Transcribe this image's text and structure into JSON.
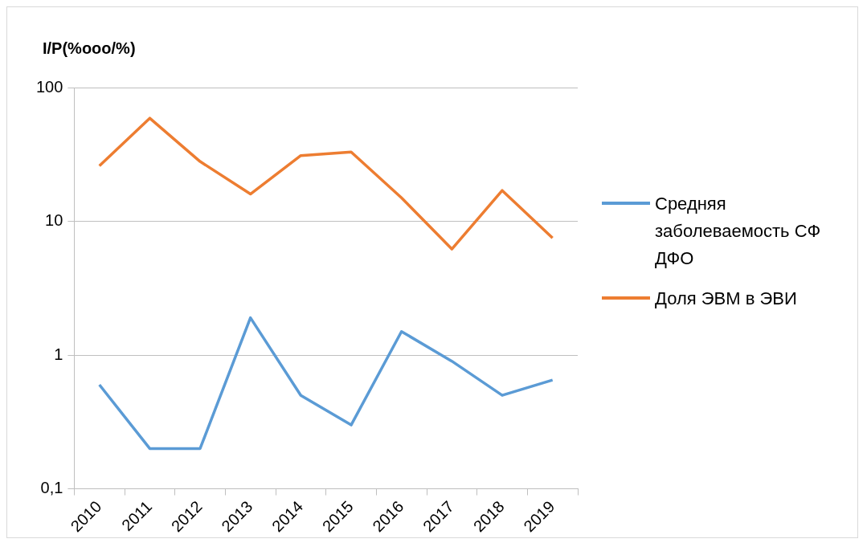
{
  "chart_data": {
    "type": "line",
    "ylabel": "I/P(%ooo/%)",
    "categories": [
      "2010",
      "2011",
      "2012",
      "2013",
      "2014",
      "2015",
      "2016",
      "2017",
      "2018",
      "2019"
    ],
    "series": [
      {
        "name": "Средняя заболеваемость СФ ДФО",
        "color": "#5b9bd5",
        "values": [
          0.6,
          0.2,
          0.2,
          1.9,
          0.5,
          0.3,
          1.5,
          0.9,
          0.5,
          0.65
        ]
      },
      {
        "name": "Доля ЭВМ в ЭВИ",
        "color": "#ed7d31",
        "values": [
          26,
          59,
          28,
          16,
          31,
          33,
          15,
          6.2,
          17,
          7.5
        ]
      }
    ],
    "log": "y",
    "ylim": [
      0.1,
      100
    ],
    "yticks": [
      {
        "value": 0.1,
        "label": "0,1"
      },
      1,
      10,
      100
    ],
    "grid": "y",
    "legend": "right",
    "marker": "none",
    "line_style": "solid"
  }
}
